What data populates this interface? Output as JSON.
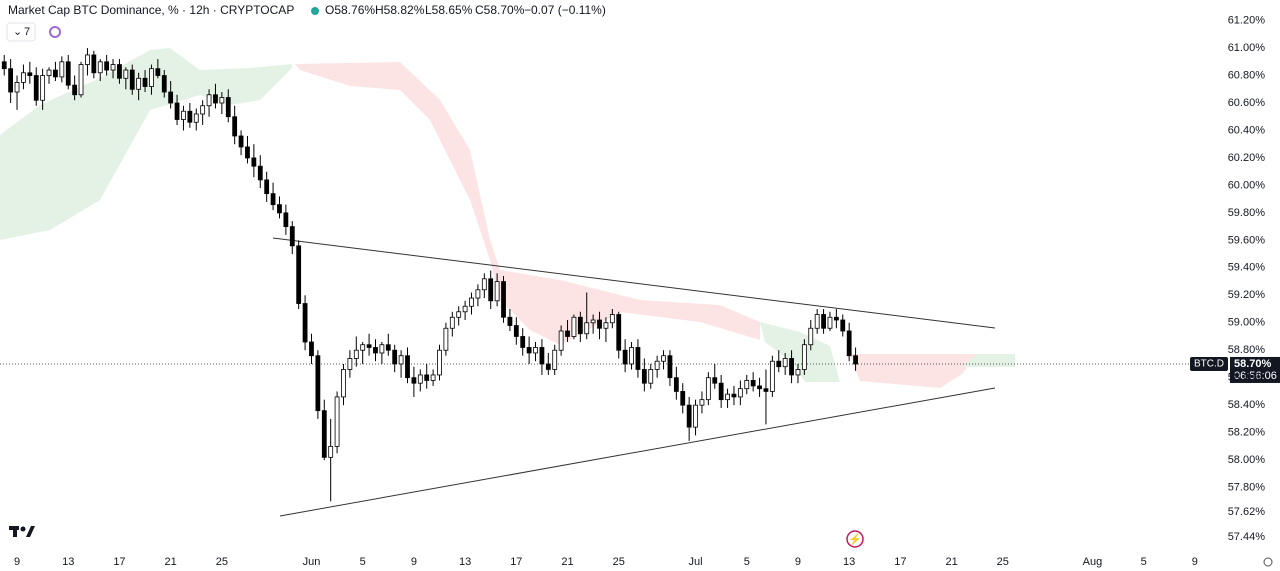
{
  "chart_data": {
    "type": "candlestick",
    "title": "Market Cap BTC Dominance, % · 12h · CRYPTOCAP",
    "legend": {
      "open": {
        "value": 58.76,
        "label": "O58.76%"
      },
      "high": {
        "value": 58.82,
        "label": "H58.82%"
      },
      "low": {
        "value": 58.65,
        "label": "L58.65%"
      },
      "close": {
        "value": 58.7,
        "label": "C58.70%"
      },
      "change": "−0.07 (−0.11%)"
    },
    "indicator_count": "7",
    "price_tag": {
      "symbol": "BTC.D",
      "price": {
        "value": 58.7,
        "label": "58.70%"
      },
      "countdown": "06:56:06"
    },
    "up_color": "#ffffff",
    "down_color": "#000000",
    "edge_color": "#000000",
    "xlim": [
      -2.66,
      185.9
    ],
    "ylim": [
      57.36,
      61.35
    ],
    "xticks": [
      {
        "value": 0,
        "label": "9"
      },
      {
        "value": 8,
        "label": "13"
      },
      {
        "value": 16,
        "label": "17"
      },
      {
        "value": 24,
        "label": "21"
      },
      {
        "value": 32,
        "label": "25"
      },
      {
        "value": 46,
        "label": "Jun"
      },
      {
        "value": 54,
        "label": "5"
      },
      {
        "value": 62,
        "label": "9"
      },
      {
        "value": 70,
        "label": "13"
      },
      {
        "value": 78,
        "label": "17"
      },
      {
        "value": 86,
        "label": "21"
      },
      {
        "value": 94,
        "label": "25"
      },
      {
        "value": 106,
        "label": "Jul"
      },
      {
        "value": 114,
        "label": "5"
      },
      {
        "value": 122,
        "label": "9"
      },
      {
        "value": 130,
        "label": "13"
      },
      {
        "value": 138,
        "label": "17"
      },
      {
        "value": 146,
        "label": "21"
      },
      {
        "value": 154,
        "label": "25"
      },
      {
        "value": 168,
        "label": "Aug"
      },
      {
        "value": 176,
        "label": "5"
      },
      {
        "value": 184,
        "label": "9"
      }
    ],
    "yticks": [
      {
        "value": 61.2,
        "label": "61.20%"
      },
      {
        "value": 61.0,
        "label": "61.00%"
      },
      {
        "value": 60.8,
        "label": "60.80%"
      },
      {
        "value": 60.6,
        "label": "60.60%"
      },
      {
        "value": 60.4,
        "label": "60.40%"
      },
      {
        "value": 60.2,
        "label": "60.20%"
      },
      {
        "value": 60.0,
        "label": "60.00%"
      },
      {
        "value": 59.8,
        "label": "59.80%"
      },
      {
        "value": 59.6,
        "label": "59.60%"
      },
      {
        "value": 59.4,
        "label": "59.40%"
      },
      {
        "value": 59.2,
        "label": "59.20%"
      },
      {
        "value": 59.0,
        "label": "59.00%"
      },
      {
        "value": 58.8,
        "label": "58.80%"
      },
      {
        "value": 58.6,
        "label": "58.60%"
      },
      {
        "value": 58.4,
        "label": "58.40%"
      },
      {
        "value": 58.2,
        "label": "58.20%"
      },
      {
        "value": 58.0,
        "label": "58.00%"
      },
      {
        "value": 57.8,
        "label": "57.80%"
      },
      {
        "value": 57.62,
        "label": "57.62%"
      },
      {
        "value": 57.44,
        "label": "57.44%"
      }
    ],
    "x": [
      -2,
      -1,
      0,
      1,
      2,
      3,
      4,
      5,
      6,
      7,
      8,
      9,
      10,
      11,
      12,
      13,
      14,
      15,
      16,
      17,
      18,
      19,
      20,
      21,
      22,
      23,
      24,
      25,
      26,
      27,
      28,
      29,
      30,
      31,
      32,
      33,
      34,
      35,
      36,
      37,
      38,
      39,
      40,
      41,
      42,
      43,
      44,
      45,
      46,
      47,
      48,
      49,
      50,
      51,
      52,
      53,
      54,
      55,
      56,
      57,
      58,
      59,
      60,
      61,
      62,
      63,
      64,
      65,
      66,
      67,
      68,
      69,
      70,
      71,
      72,
      73,
      74,
      75,
      76,
      77,
      78,
      79,
      80,
      81,
      82,
      83,
      84,
      85,
      86,
      87,
      88,
      89,
      90,
      91,
      92,
      93,
      94,
      95,
      96,
      97,
      98,
      99,
      100,
      101,
      102,
      103,
      104,
      105,
      106,
      107,
      108,
      109,
      110,
      111,
      112,
      113,
      114,
      115,
      116,
      117,
      118,
      119,
      120,
      121,
      122,
      123,
      124,
      125,
      126,
      127,
      128,
      129,
      130,
      131
    ],
    "ohlc": [
      [
        60.9,
        60.95,
        60.8,
        60.85
      ],
      [
        60.85,
        60.92,
        60.6,
        60.68
      ],
      [
        60.68,
        60.8,
        60.55,
        60.75
      ],
      [
        60.75,
        60.88,
        60.7,
        60.82
      ],
      [
        60.82,
        60.9,
        60.74,
        60.8
      ],
      [
        60.8,
        60.86,
        60.58,
        60.62
      ],
      [
        60.62,
        60.85,
        60.55,
        60.8
      ],
      [
        60.8,
        60.86,
        60.74,
        60.84
      ],
      [
        60.84,
        60.9,
        60.76,
        60.79
      ],
      [
        60.79,
        60.94,
        60.75,
        60.9
      ],
      [
        60.9,
        60.95,
        60.7,
        60.73
      ],
      [
        60.73,
        60.8,
        60.62,
        60.66
      ],
      [
        60.66,
        60.9,
        60.64,
        60.88
      ],
      [
        60.88,
        61.0,
        60.8,
        60.95
      ],
      [
        60.95,
        60.98,
        60.78,
        60.82
      ],
      [
        60.82,
        60.92,
        60.76,
        60.9
      ],
      [
        60.9,
        60.95,
        60.8,
        60.84
      ],
      [
        60.84,
        60.92,
        60.78,
        60.88
      ],
      [
        60.88,
        60.92,
        60.74,
        60.78
      ],
      [
        60.78,
        60.86,
        60.7,
        60.84
      ],
      [
        60.84,
        60.88,
        60.66,
        60.7
      ],
      [
        60.7,
        60.82,
        60.62,
        60.78
      ],
      [
        60.78,
        60.84,
        60.68,
        60.72
      ],
      [
        60.72,
        60.88,
        60.66,
        60.85
      ],
      [
        60.85,
        60.92,
        60.78,
        60.8
      ],
      [
        60.8,
        60.84,
        60.64,
        60.68
      ],
      [
        60.68,
        60.76,
        60.56,
        60.6
      ],
      [
        60.6,
        60.66,
        60.44,
        60.48
      ],
      [
        60.48,
        60.58,
        60.4,
        60.54
      ],
      [
        60.54,
        60.6,
        60.42,
        60.46
      ],
      [
        60.46,
        60.56,
        60.4,
        60.52
      ],
      [
        60.52,
        60.62,
        60.44,
        60.58
      ],
      [
        60.58,
        60.7,
        60.5,
        60.66
      ],
      [
        60.66,
        60.74,
        60.56,
        60.6
      ],
      [
        60.6,
        60.68,
        60.52,
        60.64
      ],
      [
        60.64,
        60.7,
        60.46,
        60.5
      ],
      [
        60.5,
        60.58,
        60.3,
        60.36
      ],
      [
        60.36,
        60.4,
        60.22,
        60.28
      ],
      [
        60.28,
        60.36,
        60.16,
        60.2
      ],
      [
        60.2,
        60.3,
        60.06,
        60.14
      ],
      [
        60.14,
        60.22,
        59.98,
        60.04
      ],
      [
        60.04,
        60.1,
        59.88,
        59.94
      ],
      [
        59.94,
        60.02,
        59.82,
        59.86
      ],
      [
        59.86,
        59.92,
        59.76,
        59.8
      ],
      [
        59.8,
        59.86,
        59.64,
        59.7
      ],
      [
        59.7,
        59.74,
        59.5,
        59.56
      ],
      [
        59.56,
        59.6,
        59.1,
        59.14
      ],
      [
        59.14,
        59.2,
        58.8,
        58.86
      ],
      [
        58.86,
        58.92,
        58.7,
        58.76
      ],
      [
        58.76,
        58.8,
        58.3,
        58.36
      ],
      [
        58.36,
        58.44,
        58.0,
        58.02
      ],
      [
        58.02,
        58.3,
        57.7,
        58.1
      ],
      [
        58.1,
        58.5,
        58.05,
        58.46
      ],
      [
        58.46,
        58.7,
        58.4,
        58.66
      ],
      [
        58.66,
        58.8,
        58.6,
        58.74
      ],
      [
        58.74,
        58.9,
        58.68,
        58.8
      ],
      [
        58.8,
        58.86,
        58.7,
        58.84
      ],
      [
        58.84,
        58.92,
        58.76,
        58.82
      ],
      [
        58.82,
        58.88,
        58.72,
        58.78
      ],
      [
        58.78,
        58.86,
        58.7,
        58.84
      ],
      [
        58.84,
        58.92,
        58.76,
        58.8
      ],
      [
        58.8,
        58.84,
        58.64,
        58.7
      ],
      [
        58.7,
        58.8,
        58.6,
        58.76
      ],
      [
        58.76,
        58.82,
        58.56,
        58.6
      ],
      [
        58.6,
        58.68,
        58.46,
        58.56
      ],
      [
        58.56,
        58.66,
        58.5,
        58.62
      ],
      [
        58.62,
        58.7,
        58.52,
        58.58
      ],
      [
        58.58,
        58.66,
        58.54,
        58.62
      ],
      [
        58.62,
        58.84,
        58.58,
        58.8
      ],
      [
        58.8,
        59.0,
        58.76,
        58.96
      ],
      [
        58.96,
        59.08,
        58.9,
        59.04
      ],
      [
        59.04,
        59.12,
        58.98,
        59.08
      ],
      [
        59.08,
        59.16,
        59.02,
        59.12
      ],
      [
        59.12,
        59.22,
        59.06,
        59.18
      ],
      [
        59.18,
        59.28,
        59.12,
        59.24
      ],
      [
        59.24,
        59.36,
        59.18,
        59.32
      ],
      [
        59.32,
        59.38,
        59.1,
        59.16
      ],
      [
        59.16,
        59.36,
        59.12,
        59.3
      ],
      [
        59.3,
        59.34,
        59.0,
        59.04
      ],
      [
        59.04,
        59.1,
        58.94,
        58.98
      ],
      [
        58.98,
        59.04,
        58.84,
        58.9
      ],
      [
        58.9,
        58.96,
        58.76,
        58.82
      ],
      [
        58.82,
        58.9,
        58.7,
        58.78
      ],
      [
        58.78,
        58.86,
        58.72,
        58.82
      ],
      [
        58.82,
        58.88,
        58.62,
        58.7
      ],
      [
        58.7,
        58.78,
        58.62,
        58.66
      ],
      [
        58.66,
        58.84,
        58.62,
        58.8
      ],
      [
        58.8,
        58.98,
        58.76,
        58.94
      ],
      [
        58.94,
        59.02,
        58.86,
        58.9
      ],
      [
        58.9,
        59.06,
        58.88,
        59.04
      ],
      [
        59.04,
        59.08,
        58.86,
        58.92
      ],
      [
        58.92,
        59.22,
        58.88,
        59.0
      ],
      [
        59.0,
        59.06,
        58.92,
        59.02
      ],
      [
        59.02,
        59.08,
        58.88,
        58.96
      ],
      [
        58.96,
        59.04,
        58.86,
        59.0
      ],
      [
        59.0,
        59.1,
        58.96,
        59.06
      ],
      [
        59.06,
        59.08,
        58.74,
        58.8
      ],
      [
        58.8,
        58.88,
        58.64,
        58.7
      ],
      [
        58.7,
        58.86,
        58.66,
        58.82
      ],
      [
        58.82,
        58.88,
        58.6,
        58.66
      ],
      [
        58.66,
        58.74,
        58.5,
        58.56
      ],
      [
        58.56,
        58.7,
        58.52,
        58.66
      ],
      [
        58.66,
        58.76,
        58.6,
        58.72
      ],
      [
        58.72,
        58.8,
        58.66,
        58.76
      ],
      [
        58.76,
        58.8,
        58.54,
        58.6
      ],
      [
        58.6,
        58.68,
        58.44,
        58.5
      ],
      [
        58.5,
        58.56,
        58.34,
        58.4
      ],
      [
        58.4,
        58.46,
        58.14,
        58.24
      ],
      [
        58.24,
        58.44,
        58.18,
        58.4
      ],
      [
        58.4,
        58.5,
        58.34,
        58.44
      ],
      [
        58.44,
        58.64,
        58.4,
        58.6
      ],
      [
        58.6,
        58.7,
        58.52,
        58.56
      ],
      [
        58.56,
        58.62,
        58.38,
        58.44
      ],
      [
        58.44,
        58.52,
        58.38,
        58.48
      ],
      [
        58.48,
        58.54,
        58.4,
        58.46
      ],
      [
        58.46,
        58.58,
        58.4,
        58.52
      ],
      [
        58.52,
        58.62,
        58.48,
        58.58
      ],
      [
        58.58,
        58.64,
        58.5,
        58.54
      ],
      [
        58.54,
        58.6,
        58.46,
        58.52
      ],
      [
        58.52,
        58.66,
        58.26,
        58.5
      ],
      [
        58.5,
        58.76,
        58.46,
        58.72
      ],
      [
        58.72,
        58.8,
        58.64,
        58.68
      ],
      [
        58.68,
        58.78,
        58.62,
        58.74
      ],
      [
        58.74,
        58.8,
        58.56,
        58.62
      ],
      [
        58.62,
        58.7,
        58.56,
        58.66
      ],
      [
        58.66,
        58.88,
        58.62,
        58.84
      ],
      [
        58.84,
        59.02,
        58.8,
        58.96
      ],
      [
        58.96,
        59.1,
        58.92,
        59.06
      ],
      [
        59.06,
        59.1,
        58.92,
        58.96
      ],
      [
        58.96,
        59.08,
        58.94,
        59.04
      ],
      [
        59.04,
        59.1,
        58.96,
        59.02
      ],
      [
        59.02,
        59.06,
        58.9,
        58.94
      ],
      [
        58.94,
        59.0,
        58.72,
        58.76
      ],
      [
        58.76,
        58.82,
        58.65,
        58.7
      ]
    ]
  }
}
